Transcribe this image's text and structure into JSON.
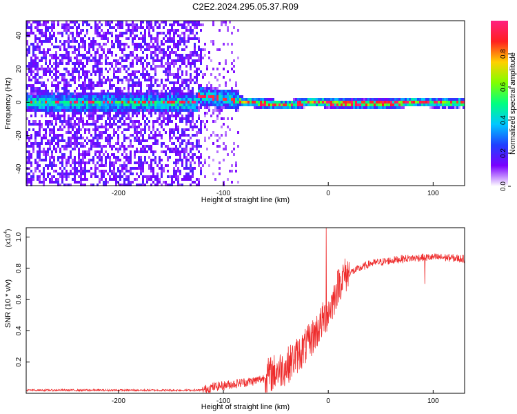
{
  "title": "C2E2.2024.295.05.37.R09",
  "chart_data": [
    {
      "type": "heatmap",
      "xlabel": "Height of straight line (km)",
      "ylabel": "Frequency (Hz)",
      "xlim": [
        -288,
        130
      ],
      "ylim": [
        -50,
        49
      ],
      "xticks": [
        -200,
        -100,
        0,
        100
      ],
      "yticks": [
        -40,
        -20,
        0,
        20,
        40
      ],
      "colorbar": {
        "label": "Normalized spectral amplitude",
        "range": [
          0,
          1
        ],
        "ticks": [
          0.0,
          0.2,
          0.4,
          0.6,
          0.8
        ],
        "tick_labels": [
          "0.0",
          "0.2",
          "0.4",
          "0.6",
          "0.8"
        ],
        "colormap": [
          "#ffffff",
          "#7a00ff",
          "#2040ff",
          "#00c8ff",
          "#00ff80",
          "#80ff00",
          "#ffd000",
          "#ff2020",
          "#ff2080"
        ]
      },
      "features": {
        "noise_region_x": [
          -288,
          -122
        ],
        "sparse_region_x": [
          -122,
          -85
        ],
        "signal_band_center_hz": [
          [
            -125,
            5
          ],
          [
            -115,
            4
          ],
          [
            -100,
            3
          ],
          [
            -90,
            2
          ],
          [
            -80,
            1
          ],
          [
            -70,
            0.5
          ],
          [
            -60,
            0
          ],
          [
            -50,
            -0.5
          ],
          [
            -40,
            -1
          ],
          [
            -30,
            0
          ],
          [
            -20,
            1
          ],
          [
            0,
            0.5
          ],
          [
            20,
            0
          ],
          [
            40,
            0
          ],
          [
            60,
            0
          ],
          [
            80,
            1
          ],
          [
            100,
            0.5
          ],
          [
            130,
            0.5
          ]
        ]
      }
    },
    {
      "type": "line",
      "xlabel": "Height of straight line (km)",
      "ylabel": "SNR (10 * v/v)",
      "y_multiplier_label": "(x10",
      "y_multiplier_exp": "4",
      "y_multiplier_close": ")",
      "xlim": [
        -288,
        130
      ],
      "ylim": [
        0,
        1.06
      ],
      "xticks": [
        -200,
        -100,
        0,
        100
      ],
      "yticks": [
        0.2,
        0.4,
        0.6,
        0.8,
        1.0
      ],
      "series": [
        {
          "color": "#ee2b2b",
          "trend": [
            [
              -288,
              0.02
            ],
            [
              -200,
              0.02
            ],
            [
              -120,
              0.02
            ],
            [
              -110,
              0.04
            ],
            [
              -100,
              0.05
            ],
            [
              -90,
              0.06
            ],
            [
              -80,
              0.07
            ],
            [
              -70,
              0.08
            ],
            [
              -60,
              0.1
            ],
            [
              -50,
              0.14
            ],
            [
              -40,
              0.17
            ],
            [
              -30,
              0.24
            ],
            [
              -20,
              0.31
            ],
            [
              -10,
              0.41
            ],
            [
              -5,
              0.47
            ],
            [
              0,
              0.52
            ],
            [
              5,
              0.6
            ],
            [
              10,
              0.7
            ],
            [
              15,
              0.75
            ],
            [
              20,
              0.77
            ],
            [
              30,
              0.8
            ],
            [
              40,
              0.83
            ],
            [
              50,
              0.84
            ],
            [
              70,
              0.86
            ],
            [
              90,
              0.87
            ],
            [
              110,
              0.87
            ],
            [
              130,
              0.86
            ]
          ],
          "spikes": [
            [
              -2,
              1.06
            ],
            [
              92,
              0.96
            ],
            [
              92,
              0.7
            ]
          ]
        }
      ]
    }
  ]
}
